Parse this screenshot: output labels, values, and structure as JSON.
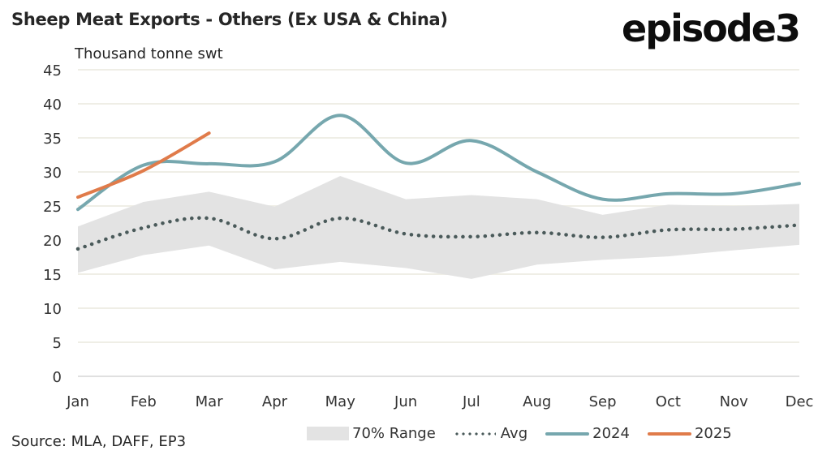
{
  "header": {
    "title": "Sheep Meat Exports - Others (Ex USA & China)",
    "logo": "episode3",
    "unit_label": "Thousand tonne swt"
  },
  "footer": {
    "source": "Source: MLA, DAFF, EP3"
  },
  "colors": {
    "range": "#e3e3e3",
    "avg": "#4a5a5a",
    "y2024": "#76a7ae",
    "y2025": "#e07b4a",
    "grid": "#efeee6"
  },
  "chart_data": {
    "type": "line",
    "title": "Sheep Meat Exports - Others (Ex USA & China)",
    "ylabel": "Thousand tonne swt",
    "xlabel": "",
    "ylim": [
      0,
      45
    ],
    "yticks": [
      0,
      5,
      10,
      15,
      20,
      25,
      30,
      35,
      40,
      45
    ],
    "grid": true,
    "legend_position": "bottom",
    "categories": [
      "Jan",
      "Feb",
      "Mar",
      "Apr",
      "May",
      "Jun",
      "Jul",
      "Aug",
      "Sep",
      "Oct",
      "Nov",
      "Dec"
    ],
    "range": {
      "name": "70% Range",
      "lower": [
        15.2,
        17.8,
        19.2,
        15.7,
        16.8,
        15.9,
        14.3,
        16.4,
        17.1,
        17.6,
        18.5,
        19.3
      ],
      "upper": [
        22.0,
        25.6,
        27.1,
        24.9,
        29.4,
        26.0,
        26.6,
        26.0,
        23.7,
        25.2,
        25.0,
        25.3
      ]
    },
    "series": [
      {
        "name": "Avg",
        "style": "dotted",
        "values": [
          18.7,
          21.8,
          23.2,
          20.2,
          23.2,
          20.9,
          20.5,
          21.1,
          20.4,
          21.5,
          21.6,
          22.2
        ]
      },
      {
        "name": "2024",
        "style": "solid",
        "values": [
          24.5,
          31.0,
          31.2,
          31.5,
          38.3,
          31.3,
          34.6,
          30.0,
          26.0,
          26.8,
          26.8,
          28.3
        ]
      },
      {
        "name": "2025",
        "style": "solid",
        "values": [
          26.3,
          30.2,
          35.7
        ]
      }
    ]
  }
}
